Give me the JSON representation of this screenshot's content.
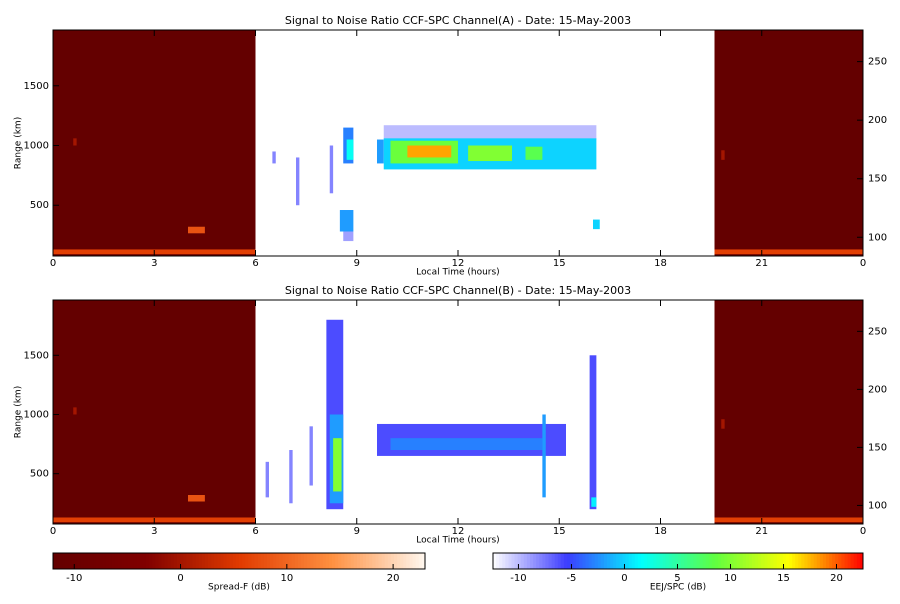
{
  "chart_data": [
    {
      "type": "heatmap",
      "title": "Signal to Noise Ratio CCF-SPC Channel(A) - Date: 15-May-2003",
      "xlabel": "Local Time (hours)",
      "ylabel": "Range (km)",
      "xlim": [
        0,
        24
      ],
      "xticks": [
        0,
        3,
        6,
        9,
        12,
        15,
        18,
        21,
        {
          "value": 24,
          "label": "0"
        }
      ],
      "ylim": [
        75,
        1967
      ],
      "yticks": [
        500,
        1000,
        1500
      ],
      "y2lim": [
        84,
        277
      ],
      "y2ticks": [
        100,
        150,
        200,
        250
      ],
      "night_colorbar": 2,
      "day_colorbar": 3,
      "night_cells": [
        {
          "x": [
            0,
            6
          ],
          "y": [
            75,
            1967
          ],
          "value": -12
        },
        {
          "x": [
            19.6,
            24
          ],
          "y": [
            75,
            1967
          ],
          "value": -12
        },
        {
          "x": [
            0,
            6
          ],
          "y": [
            90,
            130
          ],
          "value": 6
        },
        {
          "x": [
            19.6,
            24
          ],
          "y": [
            90,
            130
          ],
          "value": 6
        },
        {
          "x": [
            4,
            4.5
          ],
          "y": [
            265,
            320
          ],
          "value": 8
        },
        {
          "x": [
            0.6,
            0.7
          ],
          "y": [
            1000,
            1060
          ],
          "value": 0
        },
        {
          "x": [
            19.8,
            19.9
          ],
          "y": [
            880,
            960
          ],
          "value": 0
        }
      ],
      "day_cells": [
        {
          "x": [
            6.5,
            6.6
          ],
          "y": [
            850,
            950
          ],
          "value": -8
        },
        {
          "x": [
            7.2,
            7.3
          ],
          "y": [
            500,
            900
          ],
          "value": -8
        },
        {
          "x": [
            8.2,
            8.3
          ],
          "y": [
            600,
            1000
          ],
          "value": -8
        },
        {
          "x": [
            9.8,
            16.1
          ],
          "y": [
            1050,
            1170
          ],
          "value": -10
        },
        {
          "x": [
            8.6,
            8.9
          ],
          "y": [
            850,
            1150
          ],
          "value": -3
        },
        {
          "x": [
            8.7,
            8.9
          ],
          "y": [
            880,
            1050
          ],
          "value": 2
        },
        {
          "x": [
            8.5,
            8.9
          ],
          "y": [
            280,
            460
          ],
          "value": -2
        },
        {
          "x": [
            8.6,
            8.9
          ],
          "y": [
            200,
            280
          ],
          "value": -9
        },
        {
          "x": [
            9.6,
            9.8
          ],
          "y": [
            850,
            1050
          ],
          "value": -2
        },
        {
          "x": [
            9.8,
            16.1
          ],
          "y": [
            800,
            1060
          ],
          "value": 0
        },
        {
          "x": [
            10,
            12
          ],
          "y": [
            850,
            1040
          ],
          "value": 9
        },
        {
          "x": [
            10.5,
            11.8
          ],
          "y": [
            900,
            1000
          ],
          "value": 18
        },
        {
          "x": [
            12.3,
            13.6
          ],
          "y": [
            870,
            1000
          ],
          "value": 10
        },
        {
          "x": [
            14,
            14.5
          ],
          "y": [
            880,
            990
          ],
          "value": 8
        },
        {
          "x": [
            16,
            16.2
          ],
          "y": [
            300,
            380
          ],
          "value": 0
        }
      ]
    },
    {
      "type": "heatmap",
      "title": "Signal to Noise Ratio CCF-SPC Channel(B) - Date: 15-May-2003",
      "xlabel": "Local Time (hours)",
      "ylabel": "Range (km)",
      "xlim": [
        0,
        24
      ],
      "xticks": [
        0,
        3,
        6,
        9,
        12,
        15,
        18,
        21,
        {
          "value": 24,
          "label": "0"
        }
      ],
      "ylim": [
        75,
        1967
      ],
      "yticks": [
        500,
        1000,
        1500
      ],
      "y2lim": [
        84,
        277
      ],
      "y2ticks": [
        100,
        150,
        200,
        250
      ],
      "night_colorbar": 2,
      "day_colorbar": 3,
      "night_cells": [
        {
          "x": [
            0,
            6
          ],
          "y": [
            75,
            1967
          ],
          "value": -12
        },
        {
          "x": [
            19.6,
            24
          ],
          "y": [
            75,
            1967
          ],
          "value": -12
        },
        {
          "x": [
            0,
            6
          ],
          "y": [
            90,
            130
          ],
          "value": 6
        },
        {
          "x": [
            19.6,
            24
          ],
          "y": [
            90,
            130
          ],
          "value": 6
        },
        {
          "x": [
            4,
            4.5
          ],
          "y": [
            265,
            320
          ],
          "value": 8
        },
        {
          "x": [
            0.6,
            0.7
          ],
          "y": [
            1000,
            1060
          ],
          "value": 0
        },
        {
          "x": [
            19.8,
            19.9
          ],
          "y": [
            880,
            960
          ],
          "value": 0
        }
      ],
      "day_cells": [
        {
          "x": [
            6.3,
            6.4
          ],
          "y": [
            300,
            600
          ],
          "value": -8
        },
        {
          "x": [
            7,
            7.1
          ],
          "y": [
            250,
            700
          ],
          "value": -8
        },
        {
          "x": [
            7.6,
            7.7
          ],
          "y": [
            400,
            900
          ],
          "value": -8
        },
        {
          "x": [
            8.1,
            8.6
          ],
          "y": [
            200,
            1800
          ],
          "value": -6
        },
        {
          "x": [
            8.2,
            8.6
          ],
          "y": [
            250,
            1000
          ],
          "value": -2
        },
        {
          "x": [
            8.3,
            8.55
          ],
          "y": [
            350,
            800
          ],
          "value": 10
        },
        {
          "x": [
            9.6,
            15.2
          ],
          "y": [
            650,
            920
          ],
          "value": -6
        },
        {
          "x": [
            10,
            14.5
          ],
          "y": [
            700,
            800
          ],
          "value": -3
        },
        {
          "x": [
            14.5,
            14.6
          ],
          "y": [
            300,
            1000
          ],
          "value": -2
        },
        {
          "x": [
            15.9,
            16.1
          ],
          "y": [
            200,
            1500
          ],
          "value": -6
        },
        {
          "x": [
            15.95,
            16.1
          ],
          "y": [
            220,
            300
          ],
          "value": 1
        }
      ]
    },
    {
      "type": "colorbar",
      "xlabel": "Spread-F (dB)",
      "xlim": [
        -12,
        23
      ],
      "xticks": [
        -10,
        0,
        10,
        20
      ],
      "colors": [
        "#640000",
        "#800000",
        "#e03a00",
        "#ff9040",
        "#fff8f0"
      ]
    },
    {
      "type": "colorbar",
      "xlabel": "EEJ/SPC (dB)",
      "xlim": [
        -12.4,
        22.5
      ],
      "xticks": [
        -10,
        -5,
        0,
        5,
        10,
        15,
        20
      ],
      "colors": [
        "#ffffff",
        "#3c3cff",
        "#00ffff",
        "#60ff40",
        "#ffff00",
        "#ff0000"
      ]
    }
  ]
}
